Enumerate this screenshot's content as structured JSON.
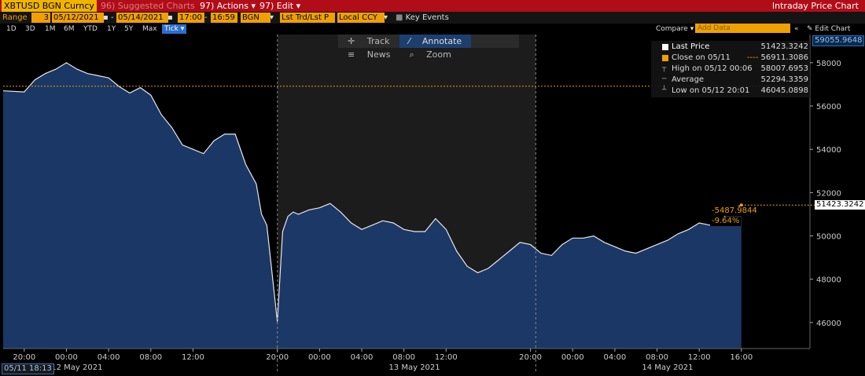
{
  "header": {
    "ticker": "XBTUSD BGN Curncy",
    "suggested": "Suggested Charts",
    "suggested_num": "96",
    "actions": "Actions",
    "actions_num": "97",
    "edit": "Edit",
    "chart_title": "Intraday Price Chart"
  },
  "controls": {
    "range_label": "Range",
    "range_num": "3",
    "start_date": "05/12/2021",
    "end_date": "05/14/2021",
    "start_time": "17:00",
    "end_time": "16:59",
    "source": "BGN",
    "field": "Lst Trd/Lst P",
    "currency": "Local CCY",
    "key_events": "Key Events"
  },
  "timeframes": [
    "1D",
    "3D",
    "1M",
    "6M",
    "YTD",
    "1Y",
    "5Y",
    "Max"
  ],
  "timeframe_selected": "Tick",
  "compare": {
    "label": "Compare",
    "placeholder": "Add Data",
    "edit_chart": "Edit Chart"
  },
  "tools": [
    "Track",
    "Annotate",
    "News",
    "Zoom"
  ],
  "legend": [
    {
      "label": "Last Price",
      "value": "51423.3242",
      "icon": "white-square"
    },
    {
      "label": "Close on 05/11",
      "value": "56911.3086",
      "icon": "orange-square"
    },
    {
      "label": "High on 05/12 00:06",
      "value": "58007.6953",
      "icon": "high-marker"
    },
    {
      "label": "Average",
      "value": "52294.3359",
      "icon": "average-marker"
    },
    {
      "label": "Low on 05/12 20:01",
      "value": "46045.0898",
      "icon": "low-marker"
    }
  ],
  "price_labels": {
    "top_marker": "59055.9648",
    "last_price": "51423.3242",
    "change_abs": "-5487.9844",
    "change_pct": "-9.64%"
  },
  "start_badge": "05/11 18:13",
  "colors": {
    "accent": "#f0a000",
    "fill": "#1b3a6b",
    "line": "#e8e8e8",
    "band": "#1c1c1c",
    "header": "#b10d18"
  },
  "chart_data": {
    "type": "area",
    "x_tick_labels": [
      "20:00",
      "00:00",
      "04:00",
      "08:00",
      "12:00",
      "20:00",
      "00:00",
      "04:00",
      "08:00",
      "12:00",
      "20:00",
      "00:00",
      "04:00",
      "08:00",
      "12:00",
      "16:00"
    ],
    "date_labels": [
      "12 May 2021",
      "13 May 2021",
      "14 May 2021"
    ],
    "y_ticks": [
      46000,
      48000,
      50000,
      52000,
      54000,
      56000,
      58000
    ],
    "ylim": [
      44800,
      59300
    ],
    "previous_close": 56911.3086,
    "x_hours": [
      0,
      2,
      3,
      4,
      5,
      6,
      7,
      8,
      9,
      10,
      11,
      12,
      13,
      14,
      15,
      16,
      17,
      18,
      19,
      20,
      21,
      22,
      23,
      24,
      24.5,
      25,
      26,
      26.5,
      27,
      27.5,
      28,
      29,
      30,
      31,
      32,
      33,
      34,
      35,
      36,
      37,
      38,
      39,
      40,
      41,
      42,
      43,
      44,
      45,
      46,
      47,
      48,
      49,
      50,
      51,
      52,
      53,
      54,
      55,
      56,
      57,
      58,
      59,
      60,
      61,
      62,
      63,
      64,
      65,
      66,
      67,
      68,
      69,
      70
    ],
    "values": [
      56700,
      56650,
      57200,
      57500,
      57700,
      58000,
      57700,
      57500,
      57400,
      57300,
      56900,
      56600,
      56850,
      56500,
      55600,
      55000,
      54200,
      54000,
      53800,
      54400,
      54700,
      54700,
      53300,
      52400,
      51000,
      50500,
      46045,
      50200,
      50900,
      51100,
      51000,
      51200,
      51300,
      51500,
      51100,
      50600,
      50300,
      50500,
      50700,
      50600,
      50300,
      50200,
      50200,
      50800,
      50300,
      49300,
      48600,
      48300,
      48500,
      48900,
      49300,
      49700,
      49600,
      49200,
      49100,
      49600,
      49900,
      49900,
      50000,
      49700,
      49500,
      49300,
      49200,
      49400,
      49600,
      49800,
      50100,
      50300,
      50600,
      50500,
      50700,
      51200,
      51423
    ],
    "last_hour": 70,
    "x_range_hours": [
      0,
      76.5
    ],
    "shaded_hours": [
      26,
      50.5
    ]
  }
}
